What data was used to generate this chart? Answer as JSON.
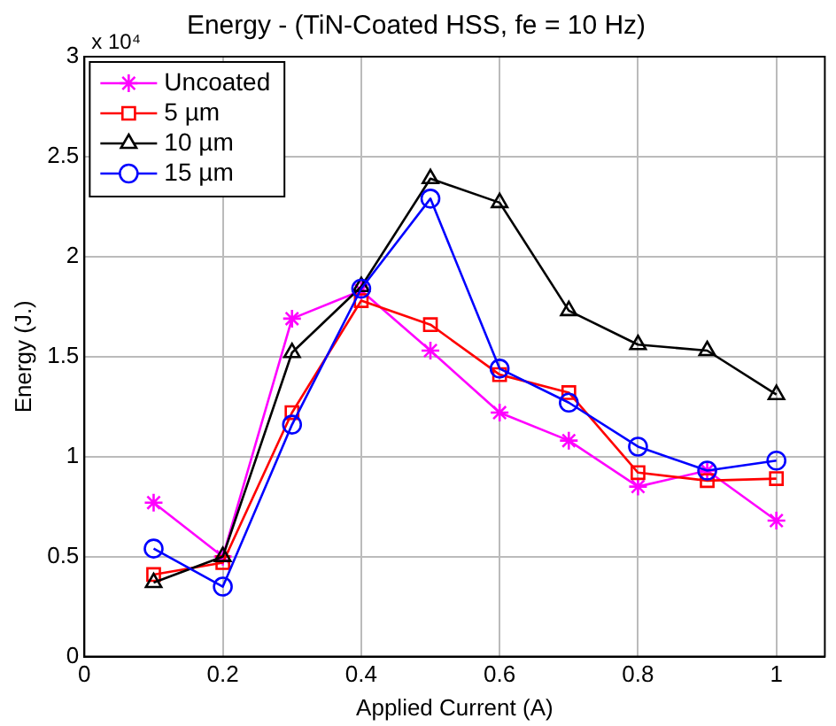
{
  "chart_data": {
    "type": "line",
    "title": "Energy - (TiN-Coated HSS, fe = 10 Hz)",
    "xlabel": "Applied Current (A)",
    "ylabel": "Energy (J.)",
    "x": [
      0.1,
      0.2,
      0.3,
      0.4,
      0.5,
      0.6,
      0.7,
      0.8,
      0.9,
      1.0
    ],
    "series": [
      {
        "name": "Uncoated",
        "color": "#ff00ff",
        "marker": "cross",
        "values": [
          0.77,
          0.5,
          1.69,
          1.83,
          1.53,
          1.22,
          1.08,
          0.85,
          0.93,
          0.68
        ]
      },
      {
        "name": "5 µm",
        "color": "#ff0000",
        "marker": "square",
        "values": [
          0.41,
          0.47,
          1.22,
          1.78,
          1.66,
          1.41,
          1.32,
          0.92,
          0.88,
          0.89
        ]
      },
      {
        "name": "10 µm",
        "color": "#000000",
        "marker": "triangle",
        "values": [
          0.37,
          0.5,
          1.52,
          1.85,
          2.39,
          2.27,
          1.73,
          1.56,
          1.53,
          1.31
        ]
      },
      {
        "name": "15 µm",
        "color": "#0000ff",
        "marker": "circle",
        "values": [
          0.54,
          0.35,
          1.16,
          1.84,
          2.29,
          1.44,
          1.27,
          1.05,
          0.93,
          0.98
        ]
      }
    ],
    "xlim": [
      0,
      1.07
    ],
    "xticks": [
      0,
      0.2,
      0.4,
      0.6,
      0.8,
      1
    ],
    "ylim": [
      0,
      3
    ],
    "yticks": [
      0,
      0.5,
      1,
      1.5,
      2,
      2.5,
      3
    ],
    "annotations": [
      "x 10⁴"
    ],
    "grid": true,
    "legend": "top left",
    "line_style": "solid"
  }
}
